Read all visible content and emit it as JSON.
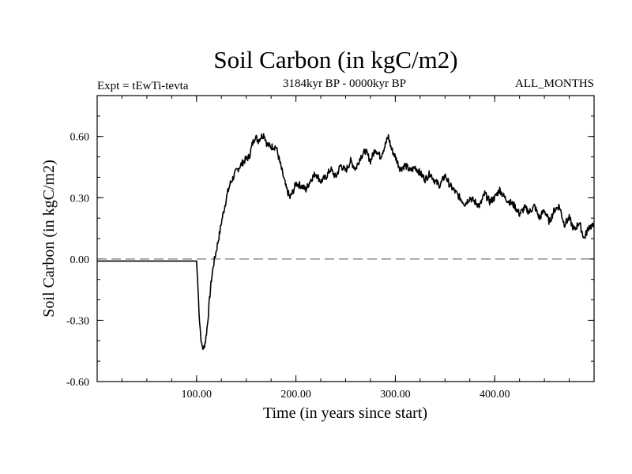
{
  "chart_data": {
    "type": "line",
    "title": "Soil Carbon (in kgC/m2)",
    "subtitle_left": "Expt = tEwTi-tevta",
    "subtitle_center": "3184kyr BP - 0000kyr BP",
    "subtitle_right": "ALL_MONTHS",
    "xlabel": "Time (in years since start)",
    "ylabel": "Soil Carbon (in kgC/m2)",
    "xlim": [
      0,
      500
    ],
    "ylim": [
      -0.6,
      0.8
    ],
    "xticks": [
      100,
      200,
      300,
      400
    ],
    "xtick_labels": [
      "100.00",
      "200.00",
      "300.00",
      "400.00"
    ],
    "yticks": [
      -0.6,
      -0.3,
      0.0,
      0.3,
      0.6
    ],
    "ytick_labels": [
      "-0.60",
      "-0.30",
      "0.00",
      "0.30",
      "0.60"
    ],
    "reference_line": {
      "y": 0.0,
      "style": "dashed",
      "color": "#777777"
    },
    "series": [
      {
        "name": "Soil Carbon",
        "color": "#000000",
        "x": [
          0,
          100,
          101,
          103,
          105,
          107,
          109,
          111,
          113,
          115,
          117,
          119,
          121,
          123,
          125,
          128,
          131,
          134,
          137,
          140,
          143,
          146,
          150,
          153,
          156,
          159,
          162,
          165,
          168,
          171,
          175,
          180,
          185,
          190,
          194,
          197,
          200,
          205,
          210,
          215,
          220,
          225,
          230,
          235,
          240,
          245,
          250,
          255,
          260,
          265,
          270,
          275,
          280,
          285,
          290,
          293,
          296,
          300,
          305,
          310,
          315,
          320,
          325,
          330,
          335,
          340,
          345,
          350,
          355,
          360,
          365,
          370,
          375,
          380,
          385,
          390,
          395,
          400,
          405,
          410,
          415,
          420,
          425,
          430,
          435,
          440,
          445,
          450,
          455,
          460,
          465,
          470,
          475,
          480,
          485,
          490,
          495,
          500
        ],
        "y": [
          -0.01,
          -0.01,
          -0.1,
          -0.3,
          -0.42,
          -0.44,
          -0.4,
          -0.32,
          -0.2,
          -0.1,
          -0.03,
          0.02,
          0.07,
          0.12,
          0.18,
          0.25,
          0.32,
          0.37,
          0.4,
          0.43,
          0.45,
          0.47,
          0.49,
          0.5,
          0.56,
          0.6,
          0.58,
          0.6,
          0.61,
          0.56,
          0.55,
          0.55,
          0.45,
          0.35,
          0.3,
          0.33,
          0.37,
          0.36,
          0.34,
          0.39,
          0.42,
          0.38,
          0.4,
          0.44,
          0.4,
          0.46,
          0.43,
          0.48,
          0.44,
          0.5,
          0.53,
          0.48,
          0.54,
          0.5,
          0.56,
          0.6,
          0.54,
          0.5,
          0.44,
          0.46,
          0.43,
          0.45,
          0.42,
          0.39,
          0.42,
          0.38,
          0.36,
          0.41,
          0.36,
          0.33,
          0.3,
          0.27,
          0.3,
          0.28,
          0.26,
          0.32,
          0.28,
          0.3,
          0.34,
          0.3,
          0.28,
          0.26,
          0.22,
          0.25,
          0.23,
          0.26,
          0.2,
          0.24,
          0.18,
          0.24,
          0.26,
          0.17,
          0.2,
          0.14,
          0.18,
          0.1,
          0.16,
          0.16
        ]
      }
    ]
  }
}
